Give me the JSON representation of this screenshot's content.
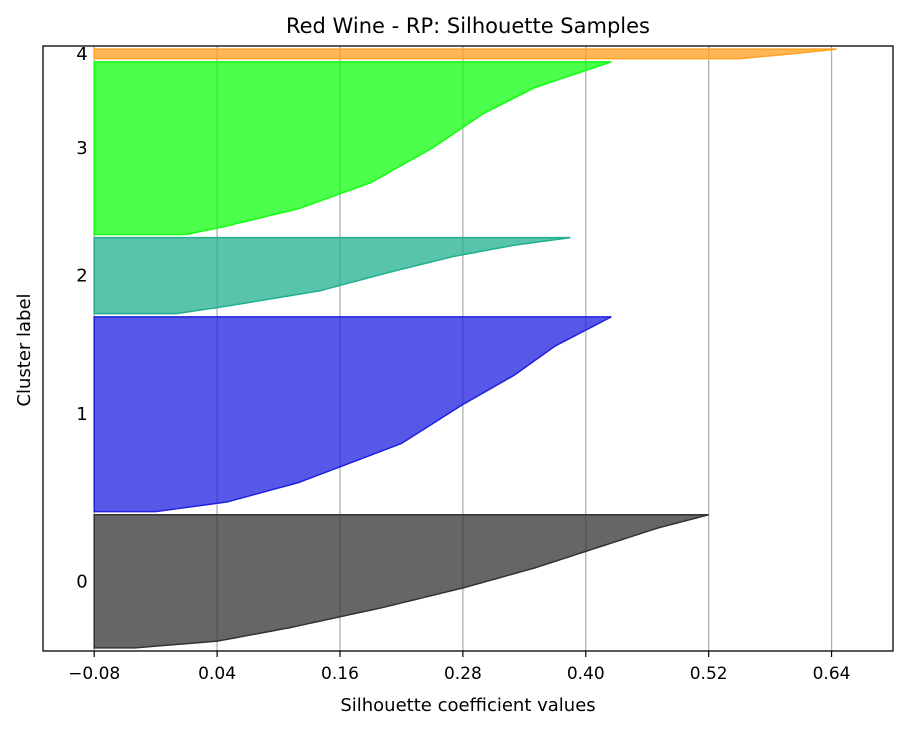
{
  "chart_data": {
    "type": "area",
    "title": "Red Wine - RP: Silhouette Samples",
    "xlabel": "Silhouette coefficient values",
    "ylabel": "Cluster label",
    "xlim": [
      -0.13,
      0.7
    ],
    "x_ticks": [
      -0.08,
      0.04,
      0.16,
      0.28,
      0.4,
      0.52,
      0.64
    ],
    "x_tick_labels": [
      "−0.08",
      "0.04",
      "0.16",
      "0.28",
      "0.40",
      "0.52",
      "0.64"
    ],
    "grid": "x-only",
    "clusters": [
      {
        "label": "0",
        "color": "#333333",
        "size": 420,
        "max": 0.52,
        "min": -0.08,
        "profile": [
          [
            0.0,
            -0.04
          ],
          [
            0.05,
            0.04
          ],
          [
            0.15,
            0.11
          ],
          [
            0.3,
            0.2
          ],
          [
            0.45,
            0.28
          ],
          [
            0.6,
            0.35
          ],
          [
            0.75,
            0.41
          ],
          [
            0.9,
            0.47
          ],
          [
            1.0,
            0.52
          ]
        ]
      },
      {
        "label": "1",
        "color": "#2020e0",
        "size": 615,
        "max": 0.425,
        "min": -0.08,
        "profile": [
          [
            0.0,
            -0.02
          ],
          [
            0.05,
            0.05
          ],
          [
            0.15,
            0.12
          ],
          [
            0.35,
            0.22
          ],
          [
            0.55,
            0.28
          ],
          [
            0.7,
            0.33
          ],
          [
            0.85,
            0.37
          ],
          [
            1.0,
            0.425
          ]
        ]
      },
      {
        "label": "2",
        "color": "#20b090",
        "size": 240,
        "max": 0.385,
        "min": -0.08,
        "profile": [
          [
            0.0,
            0.0
          ],
          [
            0.1,
            0.05
          ],
          [
            0.3,
            0.14
          ],
          [
            0.55,
            0.21
          ],
          [
            0.75,
            0.27
          ],
          [
            0.9,
            0.33
          ],
          [
            1.0,
            0.385
          ]
        ]
      },
      {
        "label": "3",
        "color": "#10ff10",
        "size": 545,
        "max": 0.425,
        "min": -0.08,
        "profile": [
          [
            0.0,
            0.01
          ],
          [
            0.05,
            0.05
          ],
          [
            0.15,
            0.12
          ],
          [
            0.3,
            0.19
          ],
          [
            0.5,
            0.25
          ],
          [
            0.7,
            0.3
          ],
          [
            0.85,
            0.35
          ],
          [
            1.0,
            0.425
          ]
        ]
      },
      {
        "label": "4",
        "color": "#ffa020",
        "size": 30,
        "max": 0.645,
        "min": -0.08,
        "profile": [
          [
            0.0,
            0.55
          ],
          [
            0.5,
            0.6
          ],
          [
            1.0,
            0.645
          ]
        ]
      }
    ]
  }
}
